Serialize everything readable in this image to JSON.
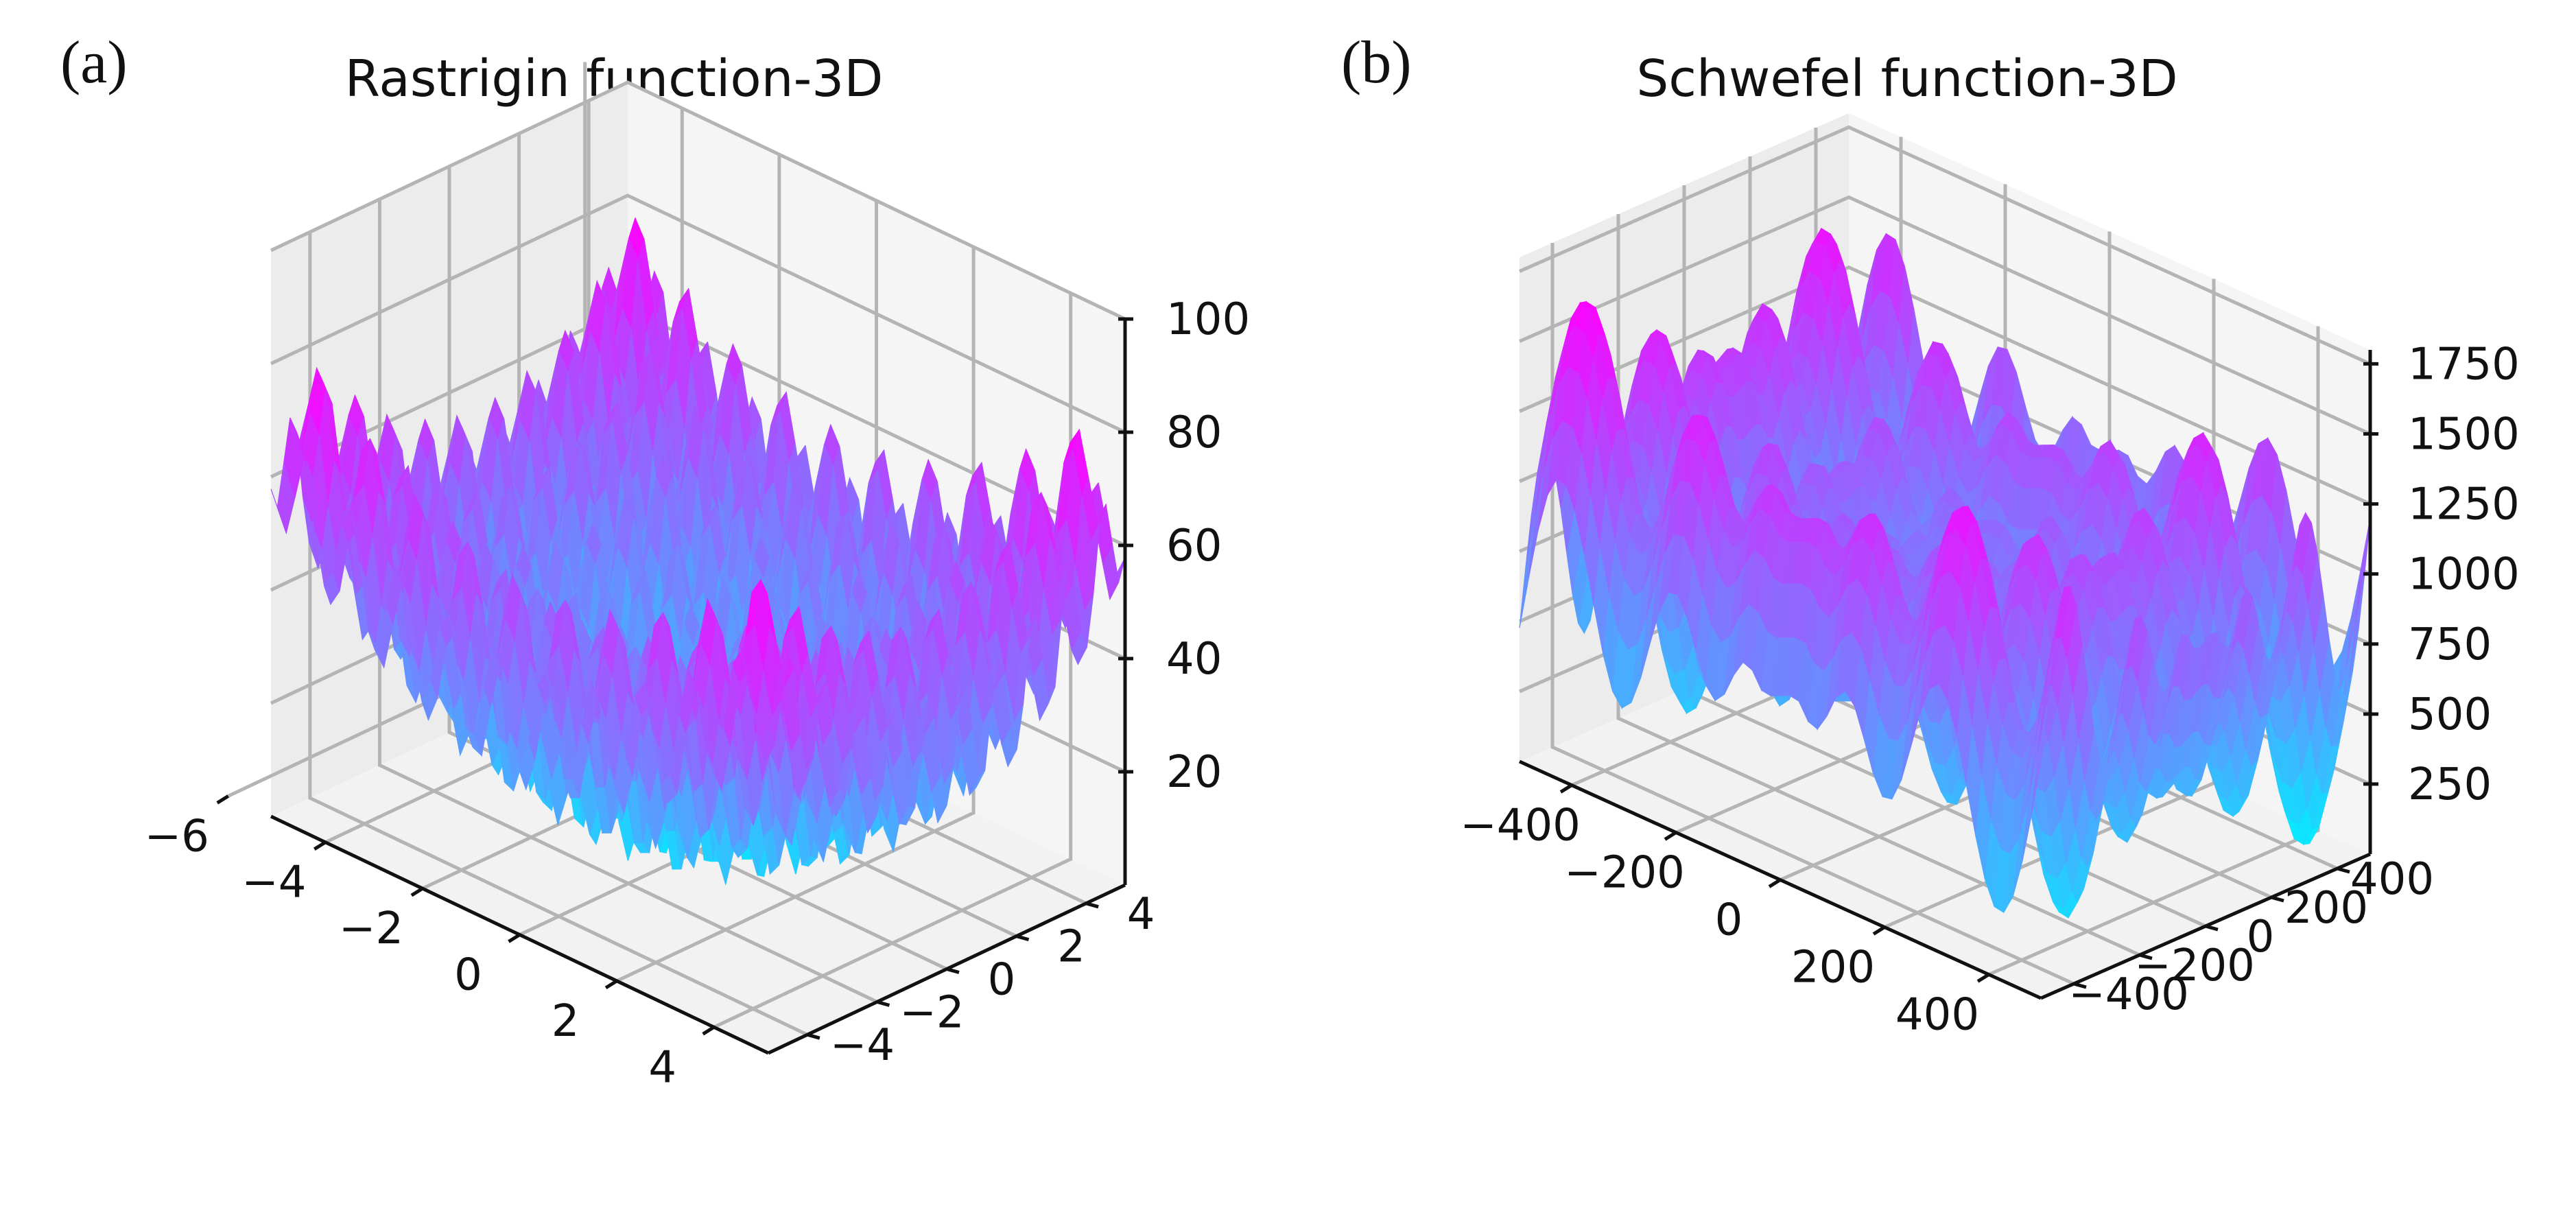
{
  "colors": {
    "surface_low": "#00f0ff",
    "surface_high": "#ff00ff"
  },
  "chart_data": [
    {
      "type": "surface3d",
      "panel_label": "(a)",
      "title": "Rastrigin function-3D",
      "colormap": "cool",
      "function": "rastrigin",
      "x_range": [
        -5.12,
        5.12
      ],
      "y_range": [
        -5.12,
        5.12
      ],
      "z_range": [
        0,
        100
      ],
      "x_ticks": [
        "−6",
        "−4",
        "−2",
        "0",
        "2",
        "4"
      ],
      "y_ticks": [
        "−4",
        "−2",
        "0",
        "2",
        "4"
      ],
      "z_ticks": [
        "20",
        "40",
        "60",
        "80",
        "100"
      ],
      "grid": true
    },
    {
      "type": "surface3d",
      "panel_label": "(b)",
      "title": "Schwefel function-3D",
      "colormap": "cool",
      "function": "schwefel",
      "x_range": [
        -500,
        500
      ],
      "y_range": [
        -500,
        500
      ],
      "z_range": [
        0,
        1800
      ],
      "x_ticks": [
        "−400",
        "−200",
        "0",
        "200",
        "400"
      ],
      "y_ticks": [
        "−400",
        "−200",
        "0",
        "200",
        "400"
      ],
      "z_ticks": [
        "250",
        "500",
        "750",
        "1000",
        "1250",
        "1500",
        "1750"
      ],
      "grid": true
    }
  ]
}
